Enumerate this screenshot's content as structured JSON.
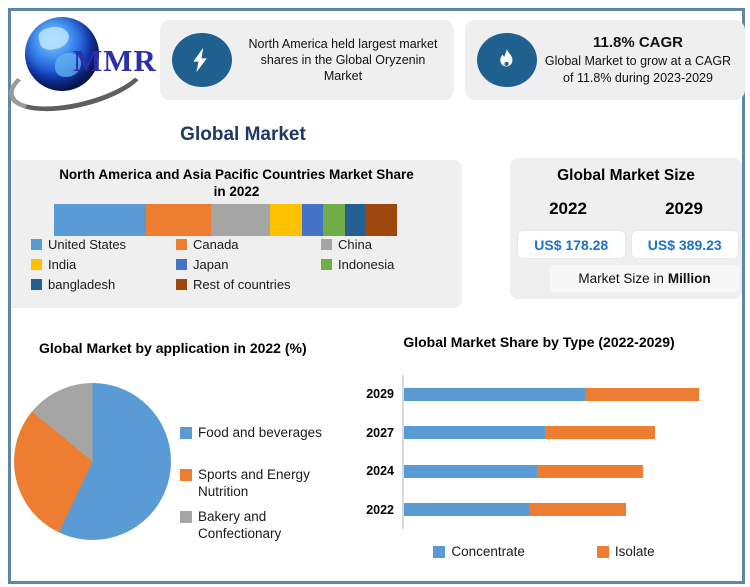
{
  "logo": {
    "text": "MMR"
  },
  "highlights": [
    {
      "icon": "lightning-bolt",
      "text": "North America held largest market shares in the Global Oryzenin Market"
    },
    {
      "icon": "flame",
      "title": "11.8% CAGR",
      "text": "Global Market to grow at a CAGR of 11.8% during 2023-2029"
    }
  ],
  "section_title": "Global Market",
  "share_panel": {
    "title_line1": "North America and Asia Pacific Countries Market Share",
    "title_line2": "in 2022"
  },
  "size_panel": {
    "title": "Global Market Size",
    "years": [
      "2022",
      "2029"
    ],
    "values": [
      "US$ 178.28",
      "US$ 389.23"
    ],
    "note_prefix": "Market Size in",
    "note_bold": "Million"
  },
  "theme": {
    "frame_border": "#5d87a5",
    "panel_background": "#efefef",
    "icon_circle": "#20608f",
    "heading_navy": "#1f3864",
    "value_blue": "#1b72c8"
  },
  "chart_data": [
    {
      "type": "bar",
      "subtype": "single-stacked-horizontal",
      "title": "North America and Asia Pacific Countries Market Share in 2022",
      "categories": [
        "United States",
        "Canada",
        "China",
        "India",
        "Japan",
        "Indonesia",
        "bangladesh",
        "Rest of countries"
      ],
      "values": [
        26.9,
        19.0,
        17.0,
        9.4,
        6.1,
        6.4,
        5.9,
        9.3
      ],
      "unit": "percent of bar width",
      "colors": [
        "#5B9BD5",
        "#ED7D31",
        "#A5A5A5",
        "#FFC000",
        "#4472C4",
        "#70AD47",
        "#255E91",
        "#9E480E"
      ],
      "legend_position": "bottom"
    },
    {
      "type": "pie",
      "title": "Global Market by application in 2022 (%)",
      "categories": [
        "Food and beverages",
        "Sports and Energy Nutrition",
        "Bakery and Confectionary"
      ],
      "values": [
        57,
        29,
        14
      ],
      "colors": [
        "#5B9BD5",
        "#ED7D31",
        "#A5A5A5"
      ],
      "start_angle": 0,
      "direction": "clockwise",
      "legend_position": "right"
    },
    {
      "type": "bar",
      "subtype": "stacked-horizontal",
      "title": "Global Market Share by Type (2022-2029)",
      "categories": [
        "2029",
        "2027",
        "2024",
        "2022"
      ],
      "series": [
        {
          "name": "Concentrate",
          "color": "#5B9BD5",
          "values": [
            61.4,
            47.8,
            45.1,
            42.4
          ]
        },
        {
          "name": "Isolate",
          "color": "#ED7D31",
          "values": [
            38.6,
            37.3,
            35.9,
            32.9
          ]
        }
      ],
      "xlim": [
        0,
        100
      ],
      "grid": false,
      "legend_position": "bottom"
    }
  ]
}
